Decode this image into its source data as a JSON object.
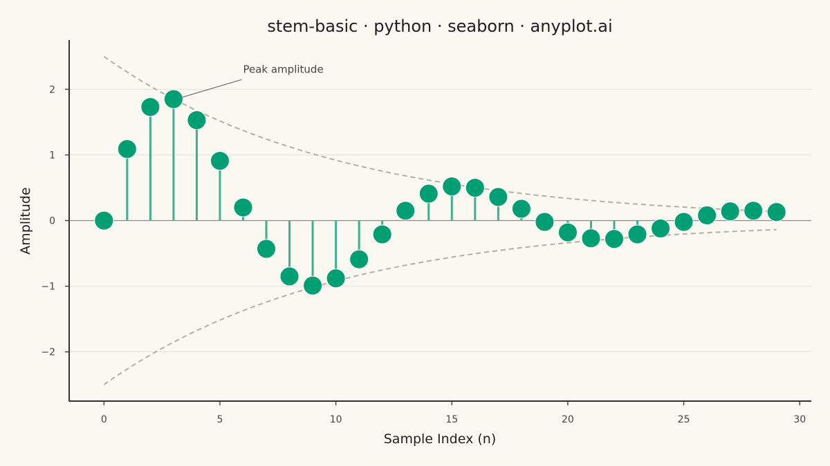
{
  "chart_data": {
    "type": "stem",
    "title": "stem-basic · python · seaborn · anyplot.ai",
    "xlabel": "Sample Index (n)",
    "ylabel": "Amplitude",
    "xlim": [
      -1.5,
      30.5
    ],
    "ylim": [
      -2.75,
      2.75
    ],
    "xticks": [
      0,
      5,
      10,
      15,
      20,
      25,
      30
    ],
    "xtick_labels": [
      "0",
      "5",
      "10",
      "15",
      "20",
      "25",
      "30"
    ],
    "yticks": [
      -2,
      -1,
      0,
      1,
      2
    ],
    "ytick_labels": [
      "−2",
      "−1",
      "0",
      "1",
      "2"
    ],
    "grid": "horizontal",
    "x": [
      0,
      1,
      2,
      3,
      4,
      5,
      6,
      7,
      8,
      9,
      10,
      11,
      12,
      13,
      14,
      15,
      16,
      17,
      18,
      19,
      20,
      21,
      22,
      23,
      24,
      25,
      26,
      27,
      28,
      29
    ],
    "values": [
      0.0,
      1.09,
      1.73,
      1.85,
      1.53,
      0.91,
      0.2,
      -0.43,
      -0.85,
      -0.99,
      -0.88,
      -0.59,
      -0.21,
      0.15,
      0.41,
      0.52,
      0.5,
      0.36,
      0.18,
      -0.02,
      -0.18,
      -0.27,
      -0.28,
      -0.21,
      -0.12,
      -0.02,
      0.08,
      0.14,
      0.15,
      0.13
    ],
    "envelope": {
      "upper_start": 2.5,
      "decay_rate": 0.1,
      "x_range": [
        0,
        29
      ],
      "style": "dashed"
    },
    "annotation": {
      "text": "Peak amplitude",
      "x": 3,
      "y": 1.85,
      "text_x": 6,
      "text_y": 2.2
    },
    "colors": {
      "marker": "#009E73",
      "stem": "#3DB08C",
      "baseline": "#8A8A8A",
      "envelope": "#B3AEA6",
      "grid": "#E4E1D9",
      "axis": "#333333"
    }
  }
}
